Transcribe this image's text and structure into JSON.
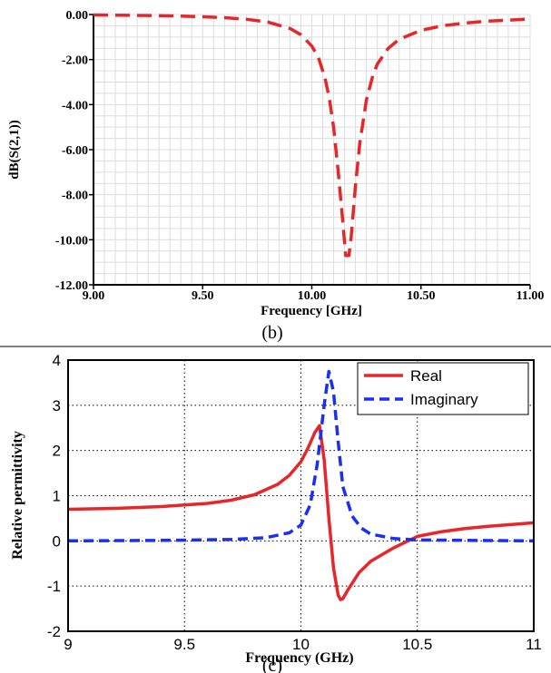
{
  "chart_data": [
    {
      "type": "line",
      "panel_label": "(b)",
      "xlabel": "Frequency [GHz]",
      "ylabel": "dB(S(2,1))",
      "xlim": [
        9.0,
        11.0
      ],
      "ylim": [
        -12.0,
        0.0
      ],
      "x_ticks": [
        "9.00",
        "9.50",
        "10.00",
        "10.50",
        "11.00"
      ],
      "y_ticks": [
        "0.00",
        "-2.00",
        "-4.00",
        "-6.00",
        "-8.00",
        "-10.00",
        "-12.00"
      ],
      "grid": true,
      "series": [
        {
          "color": "#e8262a",
          "style": "dashed",
          "x": [
            9.0,
            9.1,
            9.2,
            9.3,
            9.4,
            9.5,
            9.6,
            9.7,
            9.8,
            9.9,
            9.95,
            10.0,
            10.03,
            10.06,
            10.08,
            10.1,
            10.12,
            10.14,
            10.155,
            10.17,
            10.18,
            10.2,
            10.22,
            10.25,
            10.28,
            10.3,
            10.35,
            10.4,
            10.5,
            10.6,
            10.7,
            10.8,
            10.9,
            11.0
          ],
          "y": [
            -0.02,
            -0.03,
            -0.04,
            -0.05,
            -0.07,
            -0.1,
            -0.14,
            -0.21,
            -0.34,
            -0.62,
            -0.9,
            -1.4,
            -1.9,
            -2.8,
            -3.7,
            -5.0,
            -6.9,
            -9.0,
            -10.7,
            -10.7,
            -9.9,
            -7.6,
            -5.7,
            -3.8,
            -2.7,
            -2.2,
            -1.5,
            -1.1,
            -0.7,
            -0.5,
            -0.38,
            -0.3,
            -0.25,
            -0.2
          ]
        }
      ]
    },
    {
      "type": "line",
      "panel_label": "(c)",
      "xlabel": "Frequency (GHz)",
      "ylabel": "Relative permittivity",
      "xlim": [
        9,
        11
      ],
      "ylim": [
        -2,
        4
      ],
      "x_ticks": [
        "9",
        "9.5",
        "10",
        "10.5",
        "11"
      ],
      "y_ticks": [
        "4",
        "3",
        "2",
        "1",
        "0",
        "-1",
        "-2"
      ],
      "grid": true,
      "legend_position": "top-right",
      "series": [
        {
          "name": "Real",
          "color": "#e8262a",
          "style": "solid",
          "x": [
            9.0,
            9.2,
            9.4,
            9.6,
            9.7,
            9.8,
            9.9,
            9.95,
            10.0,
            10.03,
            10.06,
            10.08,
            10.1,
            10.12,
            10.14,
            10.16,
            10.17,
            10.18,
            10.2,
            10.25,
            10.3,
            10.4,
            10.5,
            10.6,
            10.7,
            10.8,
            10.9,
            11.0
          ],
          "y": [
            0.7,
            0.72,
            0.76,
            0.83,
            0.9,
            1.02,
            1.25,
            1.45,
            1.75,
            2.05,
            2.4,
            2.55,
            1.8,
            0.5,
            -0.6,
            -1.2,
            -1.3,
            -1.28,
            -1.1,
            -0.7,
            -0.45,
            -0.15,
            0.1,
            0.2,
            0.27,
            0.32,
            0.36,
            0.4
          ]
        },
        {
          "name": "Imaginary",
          "color": "#1a2ff0",
          "style": "dashed",
          "x": [
            9.0,
            9.4,
            9.7,
            9.85,
            9.95,
            10.0,
            10.04,
            10.07,
            10.1,
            10.12,
            10.14,
            10.16,
            10.18,
            10.22,
            10.26,
            10.3,
            10.4,
            10.5,
            11.0
          ],
          "y": [
            0.0,
            0.01,
            0.03,
            0.07,
            0.18,
            0.35,
            0.8,
            1.7,
            3.0,
            3.75,
            3.3,
            2.2,
            1.2,
            0.55,
            0.28,
            0.15,
            0.05,
            0.02,
            0.0
          ]
        }
      ]
    }
  ]
}
